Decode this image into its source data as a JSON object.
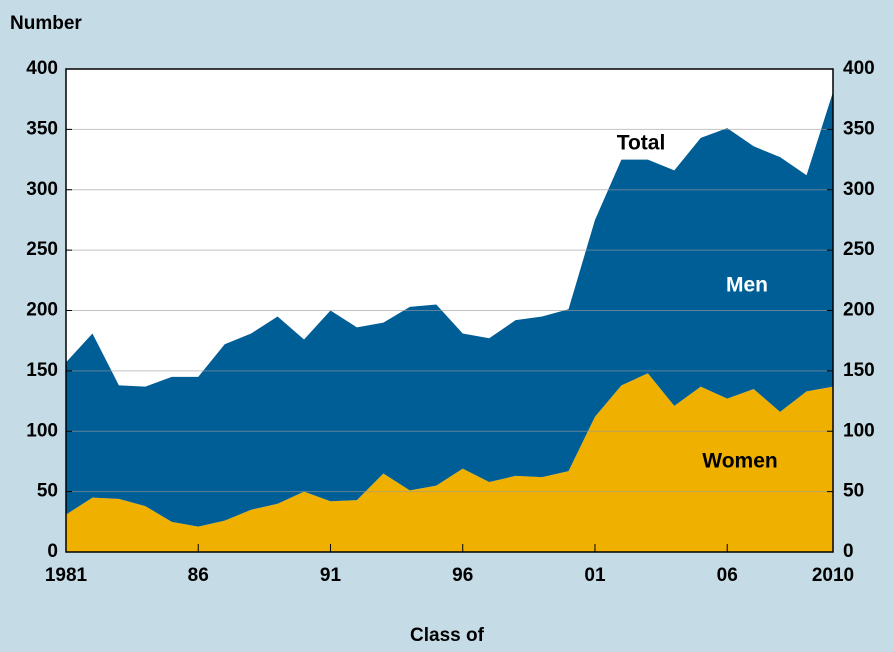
{
  "chart_data": {
    "type": "stacked_area",
    "title": "Number",
    "x_label": "Class of",
    "annotations": [
      "Total"
    ],
    "x": [
      1981,
      1982,
      1983,
      1984,
      1985,
      1986,
      1987,
      1988,
      1989,
      1990,
      1991,
      1992,
      1993,
      1994,
      1995,
      1996,
      1997,
      1998,
      1999,
      2000,
      2001,
      2002,
      2003,
      2004,
      2005,
      2006,
      2007,
      2008,
      2009,
      2010
    ],
    "series": [
      {
        "name": "Women",
        "color": "#f0b000",
        "values": [
          31,
          45,
          44,
          38,
          25,
          21,
          26,
          35,
          40,
          50,
          42,
          43,
          65,
          51,
          55,
          69,
          58,
          63,
          62,
          67,
          112,
          138,
          148,
          121,
          137,
          127,
          135,
          116,
          133,
          137
        ]
      },
      {
        "name": "Men",
        "color": "#005e96",
        "values": [
          126,
          136,
          94,
          99,
          120,
          124,
          146,
          146,
          155,
          126,
          158,
          143,
          125,
          152,
          150,
          112,
          119,
          129,
          133,
          134,
          163,
          187,
          177,
          195,
          206,
          224,
          201,
          211,
          179,
          244
        ]
      }
    ],
    "xlim": [
      1981,
      2010
    ],
    "xticks": [
      {
        "value": 1981,
        "label": "1981"
      },
      {
        "value": 1986,
        "label": "86"
      },
      {
        "value": 1991,
        "label": "91"
      },
      {
        "value": 1996,
        "label": "96"
      },
      {
        "value": 2001,
        "label": "01"
      },
      {
        "value": 2006,
        "label": "06"
      },
      {
        "value": 2010,
        "label": "2010"
      }
    ],
    "ylim": [
      0,
      400
    ],
    "yticks": [
      0,
      50,
      100,
      150,
      200,
      250,
      300,
      350,
      400
    ],
    "grid": true
  }
}
